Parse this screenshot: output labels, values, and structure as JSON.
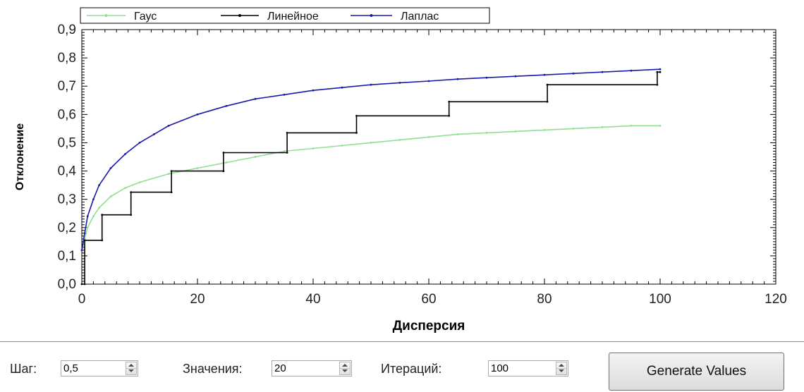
{
  "chart_data": {
    "type": "line",
    "xlabel": "Дисперсия",
    "ylabel": "Отклонение",
    "xlim": [
      0,
      120
    ],
    "ylim": [
      0,
      0.9
    ],
    "xticks": [
      0,
      20,
      40,
      60,
      80,
      100,
      120
    ],
    "xtick_labels": [
      "0",
      "20",
      "40",
      "60",
      "80",
      "100",
      "120"
    ],
    "yticks": [
      0,
      0.1,
      0.2,
      0.3,
      0.4,
      0.5,
      0.6,
      0.7,
      0.8,
      0.9
    ],
    "ytick_labels": [
      "0,0",
      "0,1",
      "0,2",
      "0,3",
      "0,4",
      "0,5",
      "0,6",
      "0,7",
      "0,8",
      "0,9"
    ],
    "grid": false,
    "legend_position": "top",
    "series": [
      {
        "name": "Гаус",
        "color": "#90e090",
        "x": [
          0,
          0.5,
          1,
          2,
          3,
          5,
          7.5,
          10,
          15,
          20,
          25,
          30,
          35,
          40,
          45,
          50,
          55,
          60,
          65,
          70,
          75,
          80,
          85,
          90,
          95,
          100
        ],
        "y": [
          0.12,
          0.16,
          0.2,
          0.24,
          0.27,
          0.31,
          0.34,
          0.36,
          0.39,
          0.41,
          0.43,
          0.45,
          0.47,
          0.48,
          0.49,
          0.5,
          0.51,
          0.52,
          0.53,
          0.535,
          0.54,
          0.545,
          0.55,
          0.555,
          0.56,
          0.56
        ]
      },
      {
        "name": "Линейное",
        "color": "#000000",
        "x": [
          0,
          0.5,
          0.5,
          3.5,
          3.5,
          8.5,
          8.5,
          15.5,
          15.5,
          24.5,
          24.5,
          35.5,
          35.5,
          47.5,
          47.5,
          63.5,
          63.5,
          80.5,
          80.5,
          99.5,
          99.5,
          100
        ],
        "y": [
          0,
          0,
          0.155,
          0.155,
          0.245,
          0.245,
          0.325,
          0.325,
          0.4,
          0.4,
          0.465,
          0.465,
          0.535,
          0.535,
          0.595,
          0.595,
          0.645,
          0.645,
          0.705,
          0.705,
          0.75,
          0.75
        ]
      },
      {
        "name": "Лаплас",
        "color": "#1a1aa8",
        "x": [
          0,
          0.5,
          1,
          2,
          3,
          5,
          7.5,
          10,
          12.5,
          15,
          20,
          25,
          30,
          35,
          40,
          45,
          50,
          55,
          60,
          65,
          70,
          75,
          80,
          85,
          90,
          95,
          100
        ],
        "y": [
          0.12,
          0.18,
          0.24,
          0.3,
          0.35,
          0.41,
          0.46,
          0.5,
          0.53,
          0.56,
          0.6,
          0.63,
          0.655,
          0.67,
          0.685,
          0.695,
          0.705,
          0.712,
          0.718,
          0.725,
          0.73,
          0.735,
          0.74,
          0.745,
          0.75,
          0.755,
          0.76
        ]
      }
    ]
  },
  "controls": {
    "step": {
      "label": "Шаг:",
      "value": "0,5"
    },
    "values": {
      "label": "Значения:",
      "value": "20"
    },
    "iterations": {
      "label": "Итераций:",
      "value": "100"
    },
    "generate_label": "Generate Values"
  }
}
